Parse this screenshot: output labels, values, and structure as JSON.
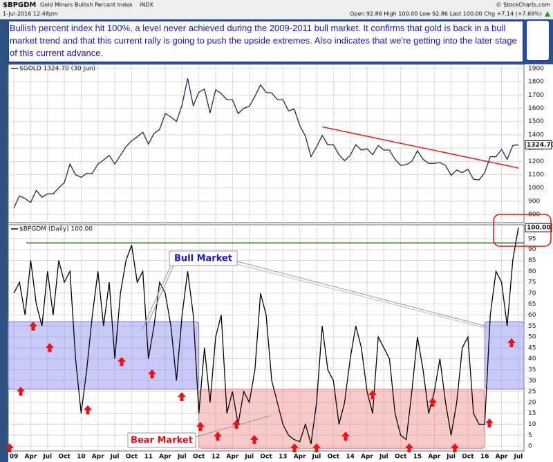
{
  "header": {
    "symbol": "$BPGDM",
    "name": "Gold Miners Bullish Percent Index",
    "exchange": "INDX",
    "date": "1-Jul-2016 12:48pm",
    "quote": "Open 92.86 High 100.00 Low 92.86 Last 100.00 Chg +7.14 (+7.69%)",
    "credit": "© StockCharts.com"
  },
  "note": "Bullish percent index hit 100%, a level never achieved during the 2009-2011 bull market.  It confirms that gold is back in a bull market trend and that this current rally is going to push the upside extremes.  Also indicates that we're getting into the later stage of this current advance.",
  "chart_data": [
    {
      "type": "line",
      "x": [
        "2009-01",
        "2009-02",
        "2009-03",
        "2009-04",
        "2009-05",
        "2009-06",
        "2009-07",
        "2009-08",
        "2009-09",
        "2009-10",
        "2009-11",
        "2009-12",
        "2010-01",
        "2010-02",
        "2010-03",
        "2010-04",
        "2010-05",
        "2010-06",
        "2010-07",
        "2010-08",
        "2010-09",
        "2010-10",
        "2010-11",
        "2010-12",
        "2011-01",
        "2011-02",
        "2011-03",
        "2011-04",
        "2011-05",
        "2011-06",
        "2011-07",
        "2011-08",
        "2011-09",
        "2011-10",
        "2011-11",
        "2011-12",
        "2012-01",
        "2012-02",
        "2012-03",
        "2012-04",
        "2012-05",
        "2012-06",
        "2012-07",
        "2012-08",
        "2012-09",
        "2012-10",
        "2012-11",
        "2012-12",
        "2013-01",
        "2013-02",
        "2013-03",
        "2013-04",
        "2013-05",
        "2013-06",
        "2013-07",
        "2013-08",
        "2013-09",
        "2013-10",
        "2013-11",
        "2013-12",
        "2014-01",
        "2014-02",
        "2014-03",
        "2014-04",
        "2014-05",
        "2014-06",
        "2014-07",
        "2014-08",
        "2014-09",
        "2014-10",
        "2014-11",
        "2014-12",
        "2015-01",
        "2015-02",
        "2015-03",
        "2015-04",
        "2015-05",
        "2015-06",
        "2015-07",
        "2015-08",
        "2015-09",
        "2015-10",
        "2015-11",
        "2015-12",
        "2016-01",
        "2016-02",
        "2016-03",
        "2016-04",
        "2016-05",
        "2016-06",
        "2016-07"
      ],
      "xlim": [
        "2008-12",
        "2016-08"
      ],
      "series": [
        {
          "name": "$GOLD 1324.70 (30 Jun)",
          "color": "#1c2a48",
          "last_label": "1324.70",
          "values": [
            850,
            940,
            920,
            890,
            980,
            930,
            955,
            955,
            1000,
            1040,
            1180,
            1100,
            1080,
            1110,
            1110,
            1180,
            1210,
            1245,
            1180,
            1245,
            1310,
            1355,
            1385,
            1420,
            1330,
            1410,
            1440,
            1560,
            1535,
            1500,
            1625,
            1825,
            1620,
            1720,
            1745,
            1565,
            1740,
            1710,
            1665,
            1665,
            1560,
            1600,
            1615,
            1690,
            1775,
            1720,
            1715,
            1665,
            1665,
            1580,
            1595,
            1470,
            1390,
            1235,
            1310,
            1395,
            1325,
            1325,
            1250,
            1205,
            1245,
            1325,
            1285,
            1295,
            1250,
            1320,
            1285,
            1285,
            1215,
            1170,
            1175,
            1200,
            1280,
            1215,
            1185,
            1185,
            1190,
            1170,
            1095,
            1135,
            1115,
            1140,
            1065,
            1060,
            1115,
            1235,
            1235,
            1290,
            1215,
            1320,
            1324.7
          ]
        }
      ],
      "ylim": [
        738,
        1931
      ],
      "yticks": [
        800,
        900,
        1000,
        1100,
        1200,
        1300,
        1400,
        1500,
        1600,
        1700,
        1800,
        1900
      ],
      "trendline": {
        "x": [
          "2013-08",
          "2016-07"
        ],
        "values": [
          1460,
          1150
        ],
        "color": "#e8201a"
      }
    },
    {
      "type": "line",
      "x": [
        "2009-01",
        "2009-02",
        "2009-03",
        "2009-04",
        "2009-05",
        "2009-06",
        "2009-07",
        "2009-08",
        "2009-09",
        "2009-10",
        "2009-11",
        "2009-12",
        "2010-01",
        "2010-02",
        "2010-03",
        "2010-04",
        "2010-05",
        "2010-06",
        "2010-07",
        "2010-08",
        "2010-09",
        "2010-10",
        "2010-11",
        "2010-12",
        "2011-01",
        "2011-02",
        "2011-03",
        "2011-04",
        "2011-05",
        "2011-06",
        "2011-07",
        "2011-08",
        "2011-09",
        "2011-10",
        "2011-11",
        "2011-12",
        "2012-01",
        "2012-02",
        "2012-03",
        "2012-04",
        "2012-05",
        "2012-06",
        "2012-07",
        "2012-08",
        "2012-09",
        "2012-10",
        "2012-11",
        "2012-12",
        "2013-01",
        "2013-02",
        "2013-03",
        "2013-04",
        "2013-05",
        "2013-06",
        "2013-07",
        "2013-08",
        "2013-09",
        "2013-10",
        "2013-11",
        "2013-12",
        "2014-01",
        "2014-02",
        "2014-03",
        "2014-04",
        "2014-05",
        "2014-06",
        "2014-07",
        "2014-08",
        "2014-09",
        "2014-10",
        "2014-11",
        "2014-12",
        "2015-01",
        "2015-02",
        "2015-03",
        "2015-04",
        "2015-05",
        "2015-06",
        "2015-07",
        "2015-08",
        "2015-09",
        "2015-10",
        "2015-11",
        "2015-12",
        "2016-01",
        "2016-02",
        "2016-03",
        "2016-04",
        "2016-05",
        "2016-06",
        "2016-07"
      ],
      "xlim": [
        "2008-12",
        "2016-08"
      ],
      "xticks": [
        {
          "value": "2009-01",
          "label": "09"
        },
        {
          "value": "2009-04",
          "label": "Apr"
        },
        {
          "value": "2009-07",
          "label": "Jul"
        },
        {
          "value": "2009-10",
          "label": "Oct"
        },
        {
          "value": "2010-01",
          "label": "10"
        },
        {
          "value": "2010-04",
          "label": "Apr"
        },
        {
          "value": "2010-07",
          "label": "Jul"
        },
        {
          "value": "2010-10",
          "label": "Oct"
        },
        {
          "value": "2011-01",
          "label": "11"
        },
        {
          "value": "2011-04",
          "label": "Apr"
        },
        {
          "value": "2011-07",
          "label": "Jul"
        },
        {
          "value": "2011-10",
          "label": "Oct"
        },
        {
          "value": "2012-01",
          "label": "12"
        },
        {
          "value": "2012-04",
          "label": "Apr"
        },
        {
          "value": "2012-07",
          "label": "Jul"
        },
        {
          "value": "2012-10",
          "label": "Oct"
        },
        {
          "value": "2013-01",
          "label": "13"
        },
        {
          "value": "2013-04",
          "label": "Apr"
        },
        {
          "value": "2013-07",
          "label": "Jul"
        },
        {
          "value": "2013-10",
          "label": "Oct"
        },
        {
          "value": "2014-01",
          "label": "14"
        },
        {
          "value": "2014-04",
          "label": "Apr"
        },
        {
          "value": "2014-07",
          "label": "Jul"
        },
        {
          "value": "2014-10",
          "label": "Oct"
        },
        {
          "value": "2015-01",
          "label": "15"
        },
        {
          "value": "2015-04",
          "label": "Apr"
        },
        {
          "value": "2015-07",
          "label": "Jul"
        },
        {
          "value": "2015-10",
          "label": "Oct"
        },
        {
          "value": "2016-01",
          "label": "16"
        },
        {
          "value": "2016-04",
          "label": "Apr"
        },
        {
          "value": "2016-07",
          "label": "Jul"
        }
      ],
      "series": [
        {
          "name": "$BPGDM (Daily) 100.00",
          "color": "#000000",
          "last_label": "100.00",
          "values": [
            70,
            75,
            60,
            85,
            65,
            55,
            80,
            60,
            85,
            75,
            80,
            40,
            15,
            35,
            60,
            80,
            55,
            75,
            40,
            70,
            85,
            92,
            75,
            80,
            40,
            55,
            75,
            70,
            55,
            30,
            60,
            80,
            60,
            15,
            45,
            20,
            50,
            60,
            15,
            25,
            10,
            25,
            20,
            35,
            70,
            60,
            30,
            20,
            10,
            5,
            3,
            2,
            10,
            1,
            20,
            55,
            35,
            30,
            10,
            20,
            40,
            55,
            45,
            25,
            15,
            50,
            45,
            40,
            15,
            5,
            3,
            25,
            50,
            35,
            15,
            25,
            40,
            20,
            5,
            20,
            45,
            50,
            15,
            10,
            10,
            60,
            80,
            75,
            55,
            85,
            100
          ]
        }
      ],
      "ylim": [
        -2.2,
        101.3
      ],
      "yticks": [
        0,
        5,
        10,
        15,
        20,
        25,
        30,
        35,
        40,
        45,
        50,
        55,
        60,
        65,
        70,
        75,
        80,
        85,
        90,
        95
      ],
      "reference_line": {
        "value": 93,
        "color": "#2e6b1e"
      },
      "regions": [
        {
          "x": [
            "2008-12",
            "2011-10"
          ],
          "y": [
            26,
            57
          ],
          "color": "#7b7bf0"
        },
        {
          "x": [
            "2016-01",
            "2016-08"
          ],
          "y": [
            26,
            57
          ],
          "color": "#7b7bf0"
        },
        {
          "x": [
            "2011-10",
            "2016-01"
          ],
          "y": [
            -1,
            26
          ],
          "color": "#f07b7b"
        }
      ],
      "annotations": [
        {
          "text": "Bull Market",
          "color": "#1a1acc"
        },
        {
          "text": "Bear Market",
          "color": "#e01010"
        }
      ]
    }
  ]
}
